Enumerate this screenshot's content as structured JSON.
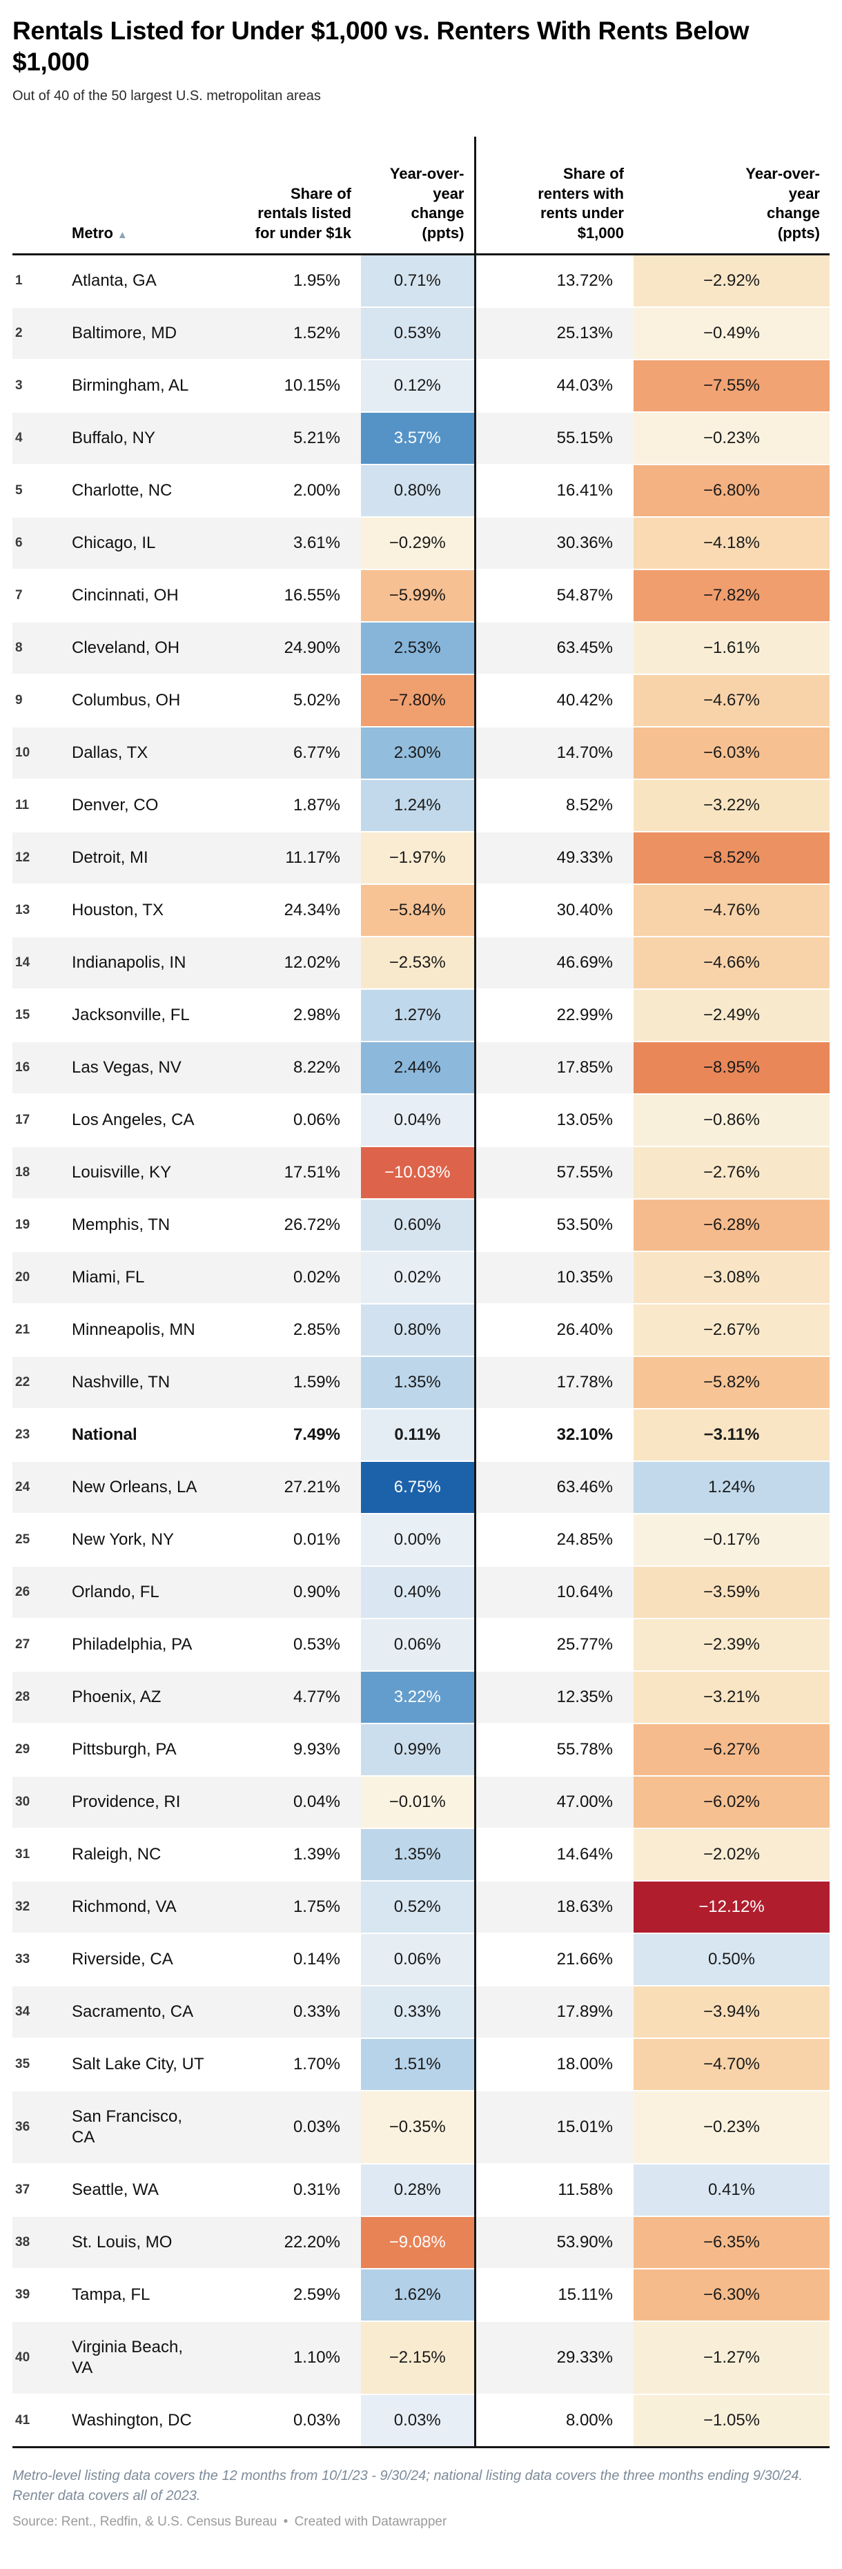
{
  "chart_data": {
    "type": "table",
    "title": "Rentals Listed for Under $1,000 vs. Renters With Rents Below $1,000",
    "subtitle": "Out of 40 of the 50 largest U.S. metropolitan areas",
    "columns": [
      "Metro",
      "Share of rentals listed for under $1k",
      "Year-over-year change (ppts)",
      "Share of renters with rents under $1,000",
      "Year-over-year change (ppts)"
    ],
    "rows": [
      {
        "rank": 1,
        "metro": "Atlanta, GA",
        "share_listed": 1.95,
        "yoy_listed": 0.71,
        "share_renters": 13.72,
        "yoy_renters": -2.92
      },
      {
        "rank": 2,
        "metro": "Baltimore, MD",
        "share_listed": 1.52,
        "yoy_listed": 0.53,
        "share_renters": 25.13,
        "yoy_renters": -0.49
      },
      {
        "rank": 3,
        "metro": "Birmingham, AL",
        "share_listed": 10.15,
        "yoy_listed": 0.12,
        "share_renters": 44.03,
        "yoy_renters": -7.55
      },
      {
        "rank": 4,
        "metro": "Buffalo, NY",
        "share_listed": 5.21,
        "yoy_listed": 3.57,
        "share_renters": 55.15,
        "yoy_renters": -0.23
      },
      {
        "rank": 5,
        "metro": "Charlotte, NC",
        "share_listed": 2.0,
        "yoy_listed": 0.8,
        "share_renters": 16.41,
        "yoy_renters": -6.8
      },
      {
        "rank": 6,
        "metro": "Chicago, IL",
        "share_listed": 3.61,
        "yoy_listed": -0.29,
        "share_renters": 30.36,
        "yoy_renters": -4.18
      },
      {
        "rank": 7,
        "metro": "Cincinnati, OH",
        "share_listed": 16.55,
        "yoy_listed": -5.99,
        "share_renters": 54.87,
        "yoy_renters": -7.82
      },
      {
        "rank": 8,
        "metro": "Cleveland, OH",
        "share_listed": 24.9,
        "yoy_listed": 2.53,
        "share_renters": 63.45,
        "yoy_renters": -1.61
      },
      {
        "rank": 9,
        "metro": "Columbus, OH",
        "share_listed": 5.02,
        "yoy_listed": -7.8,
        "share_renters": 40.42,
        "yoy_renters": -4.67
      },
      {
        "rank": 10,
        "metro": "Dallas, TX",
        "share_listed": 6.77,
        "yoy_listed": 2.3,
        "share_renters": 14.7,
        "yoy_renters": -6.03
      },
      {
        "rank": 11,
        "metro": "Denver, CO",
        "share_listed": 1.87,
        "yoy_listed": 1.24,
        "share_renters": 8.52,
        "yoy_renters": -3.22
      },
      {
        "rank": 12,
        "metro": "Detroit, MI",
        "share_listed": 11.17,
        "yoy_listed": -1.97,
        "share_renters": 49.33,
        "yoy_renters": -8.52
      },
      {
        "rank": 13,
        "metro": "Houston, TX",
        "share_listed": 24.34,
        "yoy_listed": -5.84,
        "share_renters": 30.4,
        "yoy_renters": -4.76
      },
      {
        "rank": 14,
        "metro": "Indianapolis, IN",
        "share_listed": 12.02,
        "yoy_listed": -2.53,
        "share_renters": 46.69,
        "yoy_renters": -4.66
      },
      {
        "rank": 15,
        "metro": "Jacksonville, FL",
        "share_listed": 2.98,
        "yoy_listed": 1.27,
        "share_renters": 22.99,
        "yoy_renters": -2.49
      },
      {
        "rank": 16,
        "metro": "Las Vegas, NV",
        "share_listed": 8.22,
        "yoy_listed": 2.44,
        "share_renters": 17.85,
        "yoy_renters": -8.95
      },
      {
        "rank": 17,
        "metro": "Los Angeles, CA",
        "share_listed": 0.06,
        "yoy_listed": 0.04,
        "share_renters": 13.05,
        "yoy_renters": -0.86
      },
      {
        "rank": 18,
        "metro": "Louisville, KY",
        "share_listed": 17.51,
        "yoy_listed": -10.03,
        "share_renters": 57.55,
        "yoy_renters": -2.76
      },
      {
        "rank": 19,
        "metro": "Memphis, TN",
        "share_listed": 26.72,
        "yoy_listed": 0.6,
        "share_renters": 53.5,
        "yoy_renters": -6.28
      },
      {
        "rank": 20,
        "metro": "Miami, FL",
        "share_listed": 0.02,
        "yoy_listed": 0.02,
        "share_renters": 10.35,
        "yoy_renters": -3.08
      },
      {
        "rank": 21,
        "metro": "Minneapolis, MN",
        "share_listed": 2.85,
        "yoy_listed": 0.8,
        "share_renters": 26.4,
        "yoy_renters": -2.67
      },
      {
        "rank": 22,
        "metro": "Nashville, TN",
        "share_listed": 1.59,
        "yoy_listed": 1.35,
        "share_renters": 17.78,
        "yoy_renters": -5.82
      },
      {
        "rank": 23,
        "metro": "National",
        "bold": true,
        "share_listed": 7.49,
        "yoy_listed": 0.11,
        "share_renters": 32.1,
        "yoy_renters": -3.11
      },
      {
        "rank": 24,
        "metro": "New Orleans, LA",
        "share_listed": 27.21,
        "yoy_listed": 6.75,
        "share_renters": 63.46,
        "yoy_renters": 1.24
      },
      {
        "rank": 25,
        "metro": "New York, NY",
        "share_listed": 0.01,
        "yoy_listed": 0.0,
        "share_renters": 24.85,
        "yoy_renters": -0.17
      },
      {
        "rank": 26,
        "metro": "Orlando, FL",
        "share_listed": 0.9,
        "yoy_listed": 0.4,
        "share_renters": 10.64,
        "yoy_renters": -3.59
      },
      {
        "rank": 27,
        "metro": "Philadelphia, PA",
        "share_listed": 0.53,
        "yoy_listed": 0.06,
        "share_renters": 25.77,
        "yoy_renters": -2.39
      },
      {
        "rank": 28,
        "metro": "Phoenix, AZ",
        "share_listed": 4.77,
        "yoy_listed": 3.22,
        "share_renters": 12.35,
        "yoy_renters": -3.21
      },
      {
        "rank": 29,
        "metro": "Pittsburgh, PA",
        "share_listed": 9.93,
        "yoy_listed": 0.99,
        "share_renters": 55.78,
        "yoy_renters": -6.27
      },
      {
        "rank": 30,
        "metro": "Providence, RI",
        "share_listed": 0.04,
        "yoy_listed": -0.01,
        "share_renters": 47.0,
        "yoy_renters": -6.02
      },
      {
        "rank": 31,
        "metro": "Raleigh, NC",
        "share_listed": 1.39,
        "yoy_listed": 1.35,
        "share_renters": 14.64,
        "yoy_renters": -2.02
      },
      {
        "rank": 32,
        "metro": "Richmond, VA",
        "share_listed": 1.75,
        "yoy_listed": 0.52,
        "share_renters": 18.63,
        "yoy_renters": -12.12
      },
      {
        "rank": 33,
        "metro": "Riverside, CA",
        "share_listed": 0.14,
        "yoy_listed": 0.06,
        "share_renters": 21.66,
        "yoy_renters": 0.5
      },
      {
        "rank": 34,
        "metro": "Sacramento, CA",
        "share_listed": 0.33,
        "yoy_listed": 0.33,
        "share_renters": 17.89,
        "yoy_renters": -3.94
      },
      {
        "rank": 35,
        "metro": "Salt Lake City, UT",
        "share_listed": 1.7,
        "yoy_listed": 1.51,
        "share_renters": 18.0,
        "yoy_renters": -4.7
      },
      {
        "rank": 36,
        "metro": "San Francisco, CA",
        "share_listed": 0.03,
        "yoy_listed": -0.35,
        "share_renters": 15.01,
        "yoy_renters": -0.23
      },
      {
        "rank": 37,
        "metro": "Seattle, WA",
        "share_listed": 0.31,
        "yoy_listed": 0.28,
        "share_renters": 11.58,
        "yoy_renters": 0.41
      },
      {
        "rank": 38,
        "metro": "St. Louis, MO",
        "share_listed": 22.2,
        "yoy_listed": -9.08,
        "share_renters": 53.9,
        "yoy_renters": -6.35
      },
      {
        "rank": 39,
        "metro": "Tampa, FL",
        "share_listed": 2.59,
        "yoy_listed": 1.62,
        "share_renters": 15.11,
        "yoy_renters": -6.3
      },
      {
        "rank": 40,
        "metro": "Virginia Beach, VA",
        "share_listed": 1.1,
        "yoy_listed": -2.15,
        "share_renters": 29.33,
        "yoy_renters": -1.27
      },
      {
        "rank": 41,
        "metro": "Washington, DC",
        "share_listed": 0.03,
        "yoy_listed": 0.03,
        "share_renters": 8.0,
        "yoy_renters": -1.05
      }
    ]
  },
  "icons": {
    "sort_ascending": "▲"
  },
  "footer": {
    "note": "Metro-level listing data covers the 12 months from 10/1/23 - 9/30/24; national listing data covers the three months ending 9/30/24. Renter data covers all of 2023.",
    "source": "Source: Rent., Redfin, & U.S. Census Bureau",
    "separator": "•",
    "credit": "Created with Datawrapper"
  },
  "colors": {
    "rule": "#151515",
    "row_stripe": "#f3f3f3",
    "title_text": "#000000",
    "note_text": "#7d8b99",
    "source_text": "#9b9b9b",
    "sort_icon": "#8da2b5",
    "positive_max": "#1c61ab",
    "negative_max": "#ae1c2d"
  },
  "heatmap_scale": {
    "positive_stops": [
      [
        0,
        "#e8eff5"
      ],
      [
        0.35,
        "#dbe8f2"
      ],
      [
        0.9,
        "#cfe0ee"
      ],
      [
        1.5,
        "#b7d3e9"
      ],
      [
        2.1,
        "#9cc3e0"
      ],
      [
        2.7,
        "#7fb0d7"
      ],
      [
        3.3,
        "#5f9acb"
      ],
      [
        4.2,
        "#3f83bf"
      ],
      [
        5.3,
        "#2a70b4"
      ],
      [
        6.8,
        "#1c61ab"
      ]
    ],
    "negative_stops": [
      [
        0,
        "#faf3e1"
      ],
      [
        1,
        "#f9f0da"
      ],
      [
        2,
        "#f9ecd2"
      ],
      [
        3,
        "#f9e6c6"
      ],
      [
        4,
        "#f9dcb6"
      ],
      [
        5,
        "#f8cfa4"
      ],
      [
        5.8,
        "#f7c496"
      ],
      [
        6.6,
        "#f5b585"
      ],
      [
        7.5,
        "#f1a474"
      ],
      [
        8.3,
        "#ee9665"
      ],
      [
        9.1,
        "#e88356"
      ],
      [
        10.1,
        "#dc624a"
      ],
      [
        11,
        "#cb4140"
      ],
      [
        12.2,
        "#ae1c2d"
      ]
    ],
    "white_text_threshold_positive": 3.0,
    "white_text_threshold_negative": -9.0,
    "dark_text_color": "#1a1a1a",
    "light_text_color": "#ffffff"
  }
}
